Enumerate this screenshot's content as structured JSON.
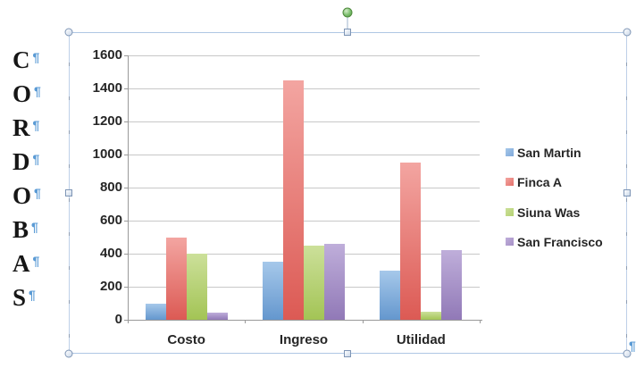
{
  "document": {
    "vertical_text": {
      "letters": [
        "C",
        "O",
        "R",
        "D",
        "O",
        "B",
        "A",
        "S"
      ],
      "pilcrow": "¶"
    },
    "trailing_pilcrow": "¶"
  },
  "ui": {
    "selection_border_color": "#AFC7E4",
    "handle_border_color": "#7E95B5",
    "rotation_handle_color": "#6FB25C",
    "pilcrow_color": "#5B9BD5",
    "gridline_color": "#C8C8C8",
    "axis_color": "#9A9A9A",
    "label_color": "#262626"
  },
  "chart_data": {
    "type": "bar",
    "title": "",
    "categories": [
      "Costo",
      "Ingreso",
      "Utilidad"
    ],
    "series": [
      {
        "name": "San Martin",
        "color": "#7FA8D9",
        "color_light": "#A6C8EA",
        "color_dark": "#6497CE",
        "values": [
          100,
          350,
          300
        ]
      },
      {
        "name": "Finca A",
        "color": "#E4716B",
        "color_light": "#F3A5A1",
        "color_dark": "#DC5A54",
        "values": [
          500,
          1450,
          950
        ]
      },
      {
        "name": "Siuna Was",
        "color": "#B4D172",
        "color_light": "#CCE09A",
        "color_dark": "#A3C455",
        "values": [
          400,
          450,
          50
        ]
      },
      {
        "name": "San Francisco",
        "color": "#A690C6",
        "color_light": "#BFAEDA",
        "color_dark": "#9179B7",
        "values": [
          45,
          460,
          420
        ]
      }
    ],
    "ylim": [
      0,
      1600
    ],
    "ytick_step": 200,
    "ytick_labels": [
      "0",
      "200",
      "400",
      "600",
      "800",
      "1000",
      "1200",
      "1400",
      "1600"
    ],
    "xlabel": "",
    "ylabel": "",
    "grid": true,
    "legend_position": "right"
  }
}
